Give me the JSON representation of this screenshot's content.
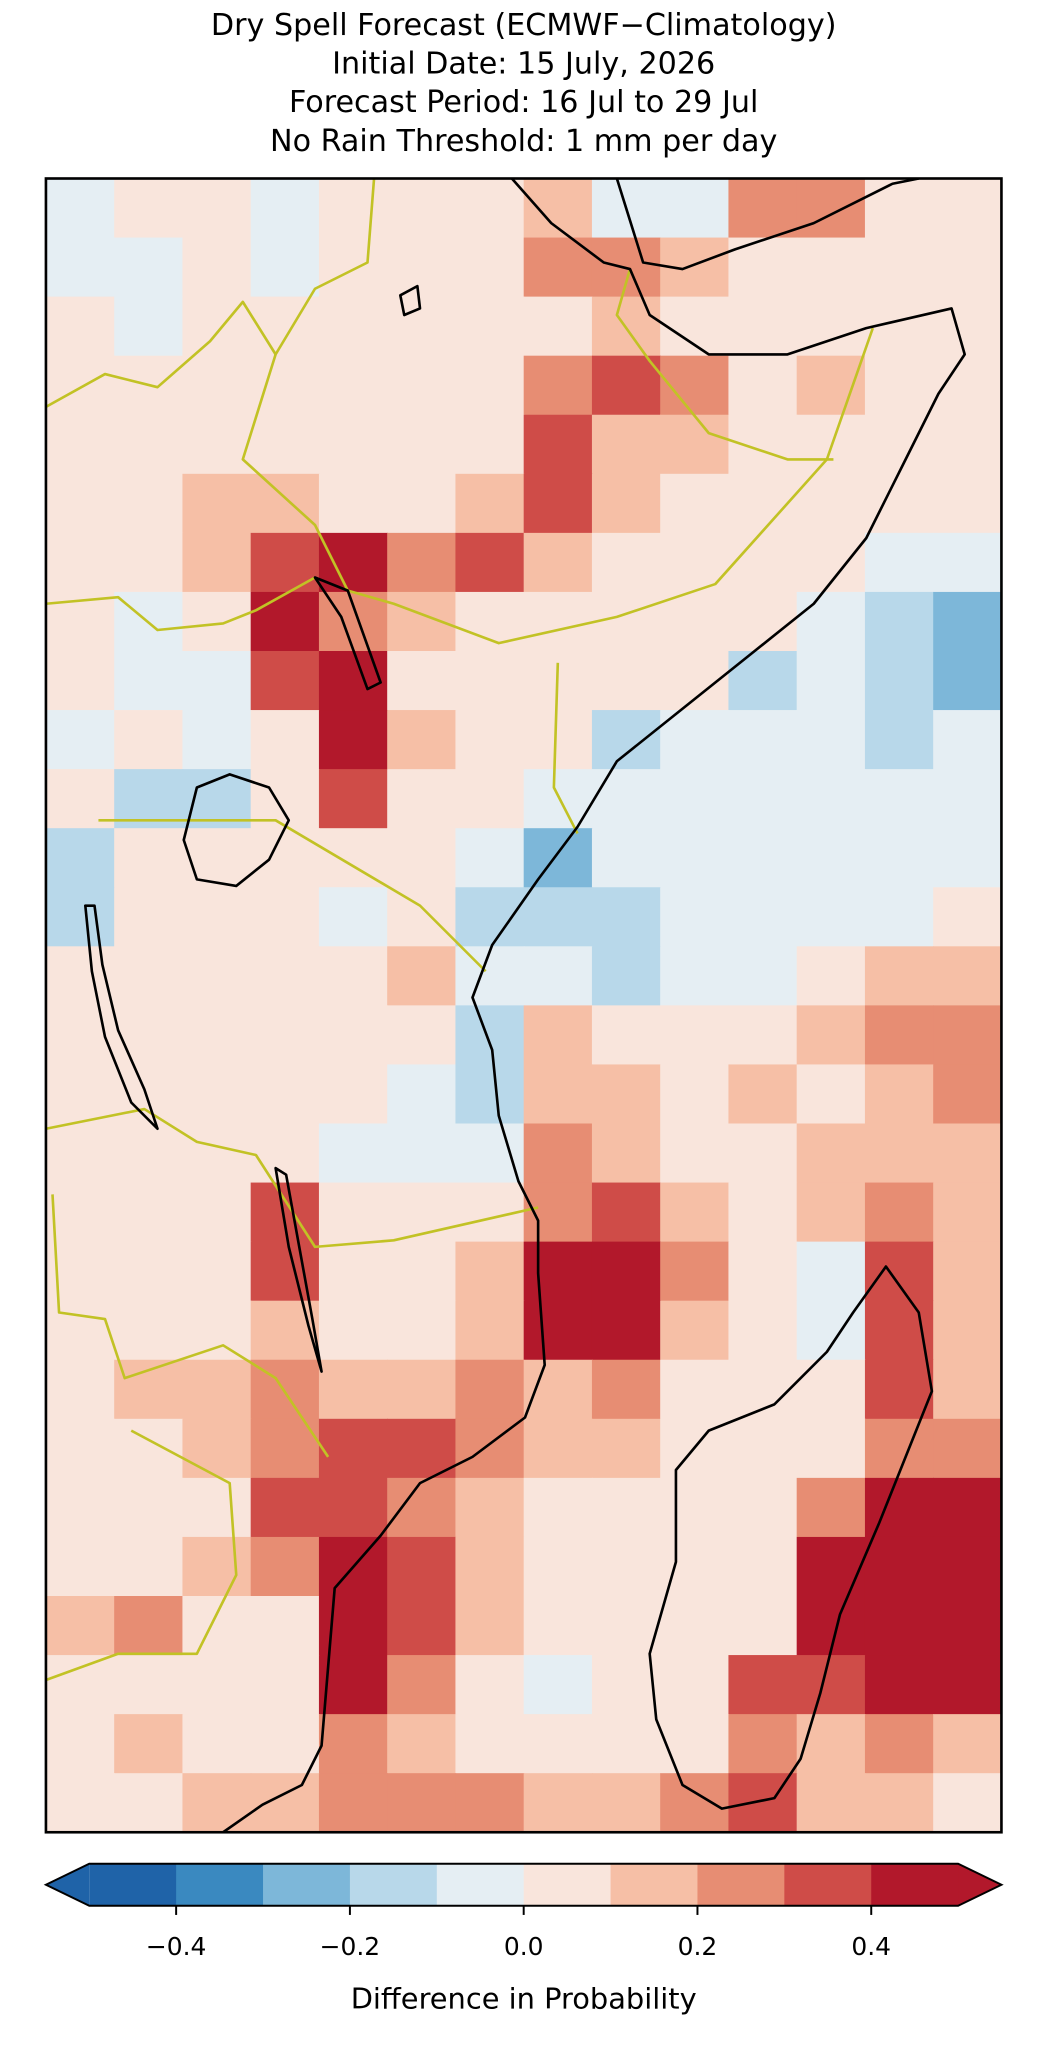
{
  "chart_data": {
    "type": "heatmap",
    "title": [
      "Dry Spell Forecast (ECMWF−Climatology)",
      "Initial Date: 15 July, 2026",
      "Forecast Period: 16 Jul to 29 Jul",
      "No Rain Threshold: 1 mm per day"
    ],
    "grid": [
      [
        -0.05,
        0.05,
        0.05,
        -0.05,
        0.05,
        0.05,
        0.05,
        0.15,
        -0.05,
        -0.05,
        0.25,
        0.25,
        0.05,
        0.05
      ],
      [
        -0.05,
        -0.05,
        0.05,
        -0.05,
        0.05,
        0.05,
        0.05,
        0.25,
        0.25,
        0.15,
        0.05,
        0.05,
        0.05,
        0.05
      ],
      [
        0.05,
        -0.05,
        0.05,
        0.05,
        0.05,
        0.05,
        0.05,
        0.05,
        0.15,
        0.05,
        0.05,
        0.05,
        0.05,
        0.05
      ],
      [
        0.05,
        0.05,
        0.05,
        0.05,
        0.05,
        0.05,
        0.05,
        0.25,
        0.35,
        0.25,
        0.05,
        0.15,
        0.05,
        0.05
      ],
      [
        0.05,
        0.05,
        0.05,
        0.05,
        0.05,
        0.05,
        0.05,
        0.35,
        0.15,
        0.15,
        0.05,
        0.05,
        0.05,
        0.05
      ],
      [
        0.05,
        0.05,
        0.15,
        0.15,
        0.05,
        0.05,
        0.15,
        0.35,
        0.15,
        0.05,
        0.05,
        0.05,
        0.05,
        0.05
      ],
      [
        0.05,
        0.05,
        0.15,
        0.35,
        0.45,
        0.25,
        0.35,
        0.15,
        0.05,
        0.05,
        0.05,
        0.05,
        -0.05,
        -0.05
      ],
      [
        0.05,
        -0.05,
        0.05,
        0.45,
        0.25,
        0.15,
        0.05,
        0.05,
        0.05,
        0.05,
        0.05,
        -0.05,
        -0.15,
        -0.25
      ],
      [
        0.05,
        -0.05,
        -0.05,
        0.35,
        0.45,
        0.05,
        0.05,
        0.05,
        0.05,
        0.05,
        -0.15,
        -0.05,
        -0.15,
        -0.25
      ],
      [
        -0.05,
        0.05,
        -0.05,
        0.05,
        0.45,
        0.15,
        0.05,
        0.05,
        -0.15,
        -0.05,
        -0.05,
        -0.05,
        -0.15,
        -0.05
      ],
      [
        0.05,
        -0.15,
        -0.15,
        0.05,
        0.35,
        0.05,
        0.05,
        -0.05,
        -0.05,
        -0.05,
        -0.05,
        -0.05,
        -0.05,
        -0.05
      ],
      [
        -0.15,
        0.05,
        0.05,
        0.05,
        0.05,
        0.05,
        -0.05,
        -0.25,
        -0.05,
        -0.05,
        -0.05,
        -0.05,
        -0.05,
        -0.05
      ],
      [
        -0.15,
        0.05,
        0.05,
        0.05,
        -0.05,
        0.05,
        -0.15,
        -0.15,
        -0.15,
        -0.05,
        -0.05,
        -0.05,
        -0.05,
        0.05
      ],
      [
        0.05,
        0.05,
        0.05,
        0.05,
        0.05,
        0.15,
        -0.05,
        -0.05,
        -0.15,
        -0.05,
        -0.05,
        0.05,
        0.15,
        0.15
      ],
      [
        0.05,
        0.05,
        0.05,
        0.05,
        0.05,
        0.05,
        -0.15,
        0.15,
        0.05,
        0.05,
        0.05,
        0.15,
        0.25,
        0.25
      ],
      [
        0.05,
        0.05,
        0.05,
        0.05,
        0.05,
        -0.05,
        -0.15,
        0.15,
        0.15,
        0.05,
        0.15,
        0.05,
        0.15,
        0.25
      ],
      [
        0.05,
        0.05,
        0.05,
        0.05,
        -0.05,
        -0.05,
        -0.05,
        0.25,
        0.15,
        0.05,
        0.05,
        0.15,
        0.15,
        0.15
      ],
      [
        0.05,
        0.05,
        0.05,
        0.35,
        0.05,
        0.05,
        0.05,
        0.25,
        0.35,
        0.15,
        0.05,
        0.15,
        0.25,
        0.15
      ],
      [
        0.05,
        0.05,
        0.05,
        0.35,
        0.05,
        0.05,
        0.15,
        0.45,
        0.45,
        0.25,
        0.05,
        -0.05,
        0.35,
        0.15
      ],
      [
        0.05,
        0.05,
        0.05,
        0.15,
        0.05,
        0.05,
        0.15,
        0.45,
        0.45,
        0.15,
        0.05,
        -0.05,
        0.35,
        0.15
      ],
      [
        0.05,
        0.15,
        0.15,
        0.25,
        0.15,
        0.15,
        0.25,
        0.15,
        0.25,
        0.05,
        0.05,
        0.05,
        0.35,
        0.15
      ],
      [
        0.05,
        0.05,
        0.15,
        0.25,
        0.35,
        0.35,
        0.25,
        0.15,
        0.15,
        0.05,
        0.05,
        0.05,
        0.25,
        0.25
      ],
      [
        0.05,
        0.05,
        0.05,
        0.35,
        0.35,
        0.25,
        0.15,
        0.05,
        0.05,
        0.05,
        0.05,
        0.25,
        0.45,
        0.45
      ],
      [
        0.05,
        0.05,
        0.15,
        0.25,
        0.45,
        0.35,
        0.15,
        0.05,
        0.05,
        0.05,
        0.05,
        0.45,
        0.45,
        0.45
      ],
      [
        0.15,
        0.25,
        0.05,
        0.05,
        0.45,
        0.35,
        0.15,
        0.05,
        0.05,
        0.05,
        0.05,
        0.45,
        0.45,
        0.45
      ],
      [
        0.05,
        0.05,
        0.05,
        0.05,
        0.45,
        0.25,
        0.05,
        -0.05,
        0.05,
        0.05,
        0.35,
        0.35,
        0.45,
        0.45
      ],
      [
        0.05,
        0.15,
        0.05,
        0.05,
        0.25,
        0.15,
        0.05,
        0.05,
        0.05,
        0.05,
        0.25,
        0.15,
        0.25,
        0.15
      ],
      [
        0.05,
        0.05,
        0.15,
        0.15,
        0.25,
        0.25,
        0.25,
        0.15,
        0.15,
        0.25,
        0.35,
        0.15,
        0.15,
        0.05
      ]
    ],
    "colorbar": {
      "label": "Difference in Probability",
      "boundaries": [
        -0.5,
        -0.4,
        -0.3,
        -0.2,
        -0.1,
        0,
        0.1,
        0.2,
        0.3,
        0.4,
        0.5
      ],
      "colors": [
        "#1f63a8",
        "#3a89c0",
        "#7db7d9",
        "#b8d8ea",
        "#e5eef3",
        "#f9e5dc",
        "#f6bfa6",
        "#e78d73",
        "#cf4c48",
        "#b2182b"
      ],
      "extend": "both",
      "ticks": [
        {
          "value": -0.4,
          "label": "−0.4"
        },
        {
          "value": -0.2,
          "label": "−0.2"
        },
        {
          "value": 0,
          "label": "0.0"
        },
        {
          "value": 0.2,
          "label": "0.2"
        },
        {
          "value": 0.4,
          "label": "0.4"
        }
      ]
    }
  }
}
